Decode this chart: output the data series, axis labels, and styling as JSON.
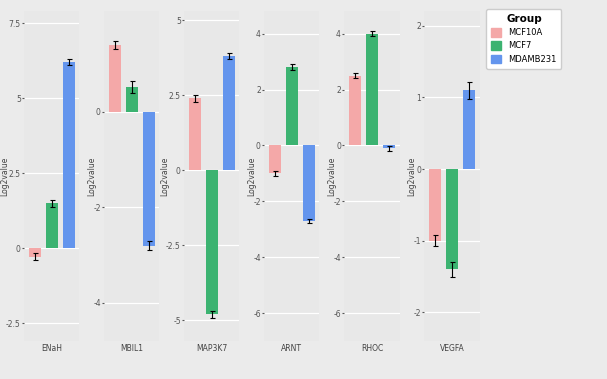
{
  "genes": [
    "ENaH",
    "MBIL1",
    "MAP3K7",
    "ARNT",
    "RHOC",
    "VEGFA"
  ],
  "groups": [
    "MCF10A",
    "MCF7",
    "MDAMB231"
  ],
  "colors": {
    "MCF10A": "#F4A8A8",
    "MCF7": "#3CB371",
    "MDAMB231": "#6495ED"
  },
  "values": {
    "ENaH": {
      "MCF10A": -0.28,
      "MCF7": 1.5,
      "MDAMB231": 6.2
    },
    "MBIL1": {
      "MCF10A": 1.4,
      "MCF7": 0.52,
      "MDAMB231": -2.8
    },
    "MAP3K7": {
      "MCF10A": 2.4,
      "MCF7": -4.8,
      "MDAMB231": 3.8
    },
    "ARNT": {
      "MCF10A": -1.0,
      "MCF7": 2.8,
      "MDAMB231": -2.7
    },
    "RHOC": {
      "MCF10A": 2.5,
      "MCF7": 4.0,
      "MDAMB231": -0.1
    },
    "VEGFA": {
      "MCF10A": -1.0,
      "MCF7": -1.4,
      "MDAMB231": 1.1
    }
  },
  "errors": {
    "ENaH": {
      "MCF10A": 0.12,
      "MCF7": 0.12,
      "MDAMB231": 0.1
    },
    "MBIL1": {
      "MCF10A": 0.08,
      "MCF7": 0.12,
      "MDAMB231": 0.1
    },
    "MAP3K7": {
      "MCF10A": 0.12,
      "MCF7": 0.12,
      "MDAMB231": 0.1
    },
    "ARNT": {
      "MCF10A": 0.08,
      "MCF7": 0.1,
      "MDAMB231": 0.08
    },
    "RHOC": {
      "MCF10A": 0.08,
      "MCF7": 0.08,
      "MDAMB231": 0.08
    },
    "VEGFA": {
      "MCF10A": 0.08,
      "MCF7": 0.1,
      "MDAMB231": 0.12
    }
  },
  "ylabel": "Log2value",
  "legend_title": "Group",
  "fig_bg": "#EBEBEB",
  "panel_bg": "#E8E8E8",
  "yticks": {
    "ENaH": [
      -2.5,
      0.0,
      2.5,
      5.0,
      7.5
    ],
    "MBIL1": [
      -4.0,
      -2.0,
      0.0
    ],
    "MAP3K7": [
      -5.0,
      -2.5,
      0.0,
      2.5,
      5.0
    ],
    "ARNT": [
      -6.0,
      -4.0,
      -2.0,
      0.0,
      2.0,
      4.0
    ],
    "RHOC": [
      -6.0,
      -4.0,
      -2.0,
      0.0,
      2.0,
      4.0
    ],
    "VEGFA": [
      -2.0,
      -1.0,
      0.0,
      1.0,
      2.0
    ]
  },
  "ylims": {
    "ENaH": [
      -3.1,
      7.9
    ],
    "MBIL1": [
      -4.8,
      2.1
    ],
    "MAP3K7": [
      -5.7,
      5.3
    ],
    "ARNT": [
      -7.0,
      4.8
    ],
    "RHOC": [
      -7.0,
      4.8
    ],
    "VEGFA": [
      -2.4,
      2.2
    ]
  }
}
